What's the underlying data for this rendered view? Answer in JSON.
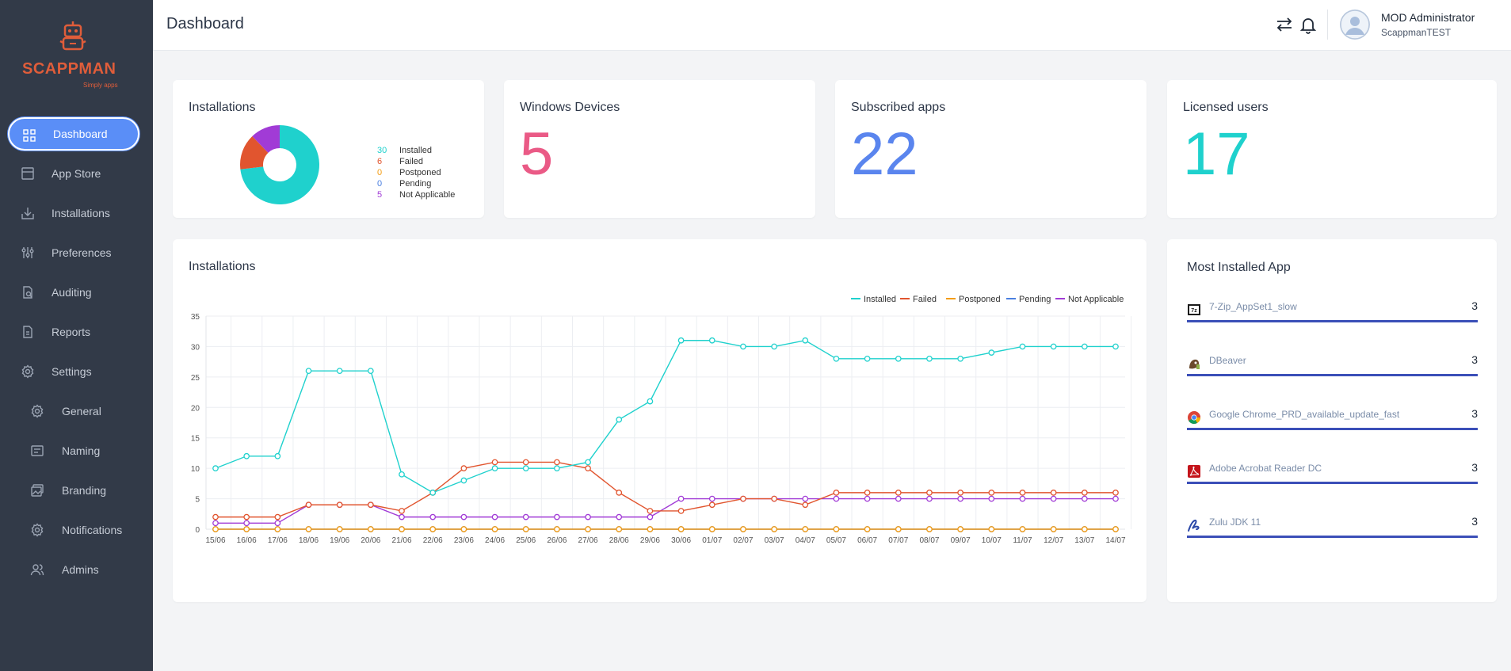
{
  "brand": {
    "name": "SCAPPMAN",
    "tagline": "Simply apps"
  },
  "sidebar": {
    "items": [
      {
        "label": "Dashboard",
        "icon": "dashboard-icon",
        "active": true
      },
      {
        "label": "App Store",
        "icon": "app-store-icon"
      },
      {
        "label": "Installations",
        "icon": "installations-icon"
      },
      {
        "label": "Preferences",
        "icon": "preferences-icon"
      },
      {
        "label": "Auditing",
        "icon": "auditing-icon"
      },
      {
        "label": "Reports",
        "icon": "reports-icon"
      },
      {
        "label": "Settings",
        "icon": "settings-icon"
      },
      {
        "label": "General",
        "icon": "gear-icon",
        "sub": true
      },
      {
        "label": "Naming",
        "icon": "naming-icon",
        "sub": true
      },
      {
        "label": "Branding",
        "icon": "branding-icon",
        "sub": true
      },
      {
        "label": "Notifications",
        "icon": "gear-icon",
        "sub": true
      },
      {
        "label": "Admins",
        "icon": "admins-icon",
        "sub": true
      }
    ]
  },
  "header": {
    "title": "Dashboard",
    "user_name": "MOD Administrator",
    "user_org": "ScappmanTEST"
  },
  "colors": {
    "installed": "#1fd1cd",
    "failed": "#e1552f",
    "postponed": "#f39c12",
    "pending": "#4a7fe0",
    "not_applicable": "#a13bd6",
    "pink": "#ea5a86",
    "blue": "#5a85ee",
    "teal": "#1fd1cd"
  },
  "cards": {
    "installations_title": "Installations",
    "installations_summary": [
      {
        "value": "30",
        "label": "Installed",
        "color": "#1fd1cd"
      },
      {
        "value": "6",
        "label": "Failed",
        "color": "#e1552f"
      },
      {
        "value": "0",
        "label": "Postponed",
        "color": "#f39c12"
      },
      {
        "value": "0",
        "label": "Pending",
        "color": "#4a7fe0"
      },
      {
        "value": "5",
        "label": "Not Applicable",
        "color": "#a13bd6"
      }
    ],
    "windows_devices_title": "Windows Devices",
    "windows_devices_value": "5",
    "subscribed_apps_title": "Subscribed apps",
    "subscribed_apps_value": "22",
    "licensed_users_title": "Licensed users",
    "licensed_users_value": "17"
  },
  "chart_data": [
    {
      "type": "pie",
      "title": "Installations",
      "categories": [
        "Installed",
        "Failed",
        "Postponed",
        "Pending",
        "Not Applicable"
      ],
      "values": [
        30,
        6,
        0,
        0,
        5
      ]
    },
    {
      "type": "line",
      "title": "Installations",
      "x": [
        "15/06",
        "16/06",
        "17/06",
        "18/06",
        "19/06",
        "20/06",
        "21/06",
        "22/06",
        "23/06",
        "24/06",
        "25/06",
        "26/06",
        "27/06",
        "28/06",
        "29/06",
        "30/06",
        "01/07",
        "02/07",
        "03/07",
        "04/07",
        "05/07",
        "06/07",
        "07/07",
        "08/07",
        "09/07",
        "10/07",
        "11/07",
        "12/07",
        "13/07",
        "14/07"
      ],
      "ylim": [
        0,
        35
      ],
      "yticks": [
        0,
        5,
        10,
        15,
        20,
        25,
        30,
        35
      ],
      "legend": "top-right",
      "series": [
        {
          "name": "Installed",
          "color": "#1fd1cd",
          "values": [
            10,
            12,
            12,
            26,
            26,
            26,
            9,
            6,
            8,
            10,
            10,
            10,
            11,
            18,
            21,
            31,
            31,
            30,
            30,
            31,
            28,
            28,
            28,
            28,
            28,
            29,
            30,
            30,
            30,
            30
          ]
        },
        {
          "name": "Failed",
          "color": "#e1552f",
          "values": [
            2,
            2,
            2,
            4,
            4,
            4,
            3,
            6,
            10,
            11,
            11,
            11,
            10,
            6,
            3,
            3,
            4,
            5,
            5,
            4,
            6,
            6,
            6,
            6,
            6,
            6,
            6,
            6,
            6,
            6
          ]
        },
        {
          "name": "Postponed",
          "color": "#f39c12",
          "values": [
            0,
            0,
            0,
            0,
            0,
            0,
            0,
            0,
            0,
            0,
            0,
            0,
            0,
            0,
            0,
            0,
            0,
            0,
            0,
            0,
            0,
            0,
            0,
            0,
            0,
            0,
            0,
            0,
            0,
            0
          ]
        },
        {
          "name": "Pending",
          "color": "#4a7fe0",
          "values": [
            0,
            0,
            0,
            0,
            0,
            0,
            0,
            0,
            0,
            0,
            0,
            0,
            0,
            0,
            0,
            0,
            0,
            0,
            0,
            0,
            0,
            0,
            0,
            0,
            0,
            0,
            0,
            0,
            0,
            0
          ]
        },
        {
          "name": "Not Applicable",
          "color": "#a13bd6",
          "values": [
            1,
            1,
            1,
            4,
            4,
            4,
            2,
            2,
            2,
            2,
            2,
            2,
            2,
            2,
            2,
            5,
            5,
            5,
            5,
            5,
            5,
            5,
            5,
            5,
            5,
            5,
            5,
            5,
            5,
            5
          ]
        }
      ]
    }
  ],
  "most_installed": {
    "title": "Most Installed App",
    "apps": [
      {
        "name": "7-Zip_AppSet1_slow",
        "count": "3",
        "icon": "7zip-icon"
      },
      {
        "name": "DBeaver",
        "count": "3",
        "icon": "dbeaver-icon"
      },
      {
        "name": "Google Chrome_PRD_available_update_fast",
        "count": "3",
        "icon": "chrome-icon"
      },
      {
        "name": "Adobe Acrobat Reader DC",
        "count": "3",
        "icon": "acrobat-icon"
      },
      {
        "name": "Zulu JDK 11",
        "count": "3",
        "icon": "zulu-icon"
      }
    ]
  }
}
